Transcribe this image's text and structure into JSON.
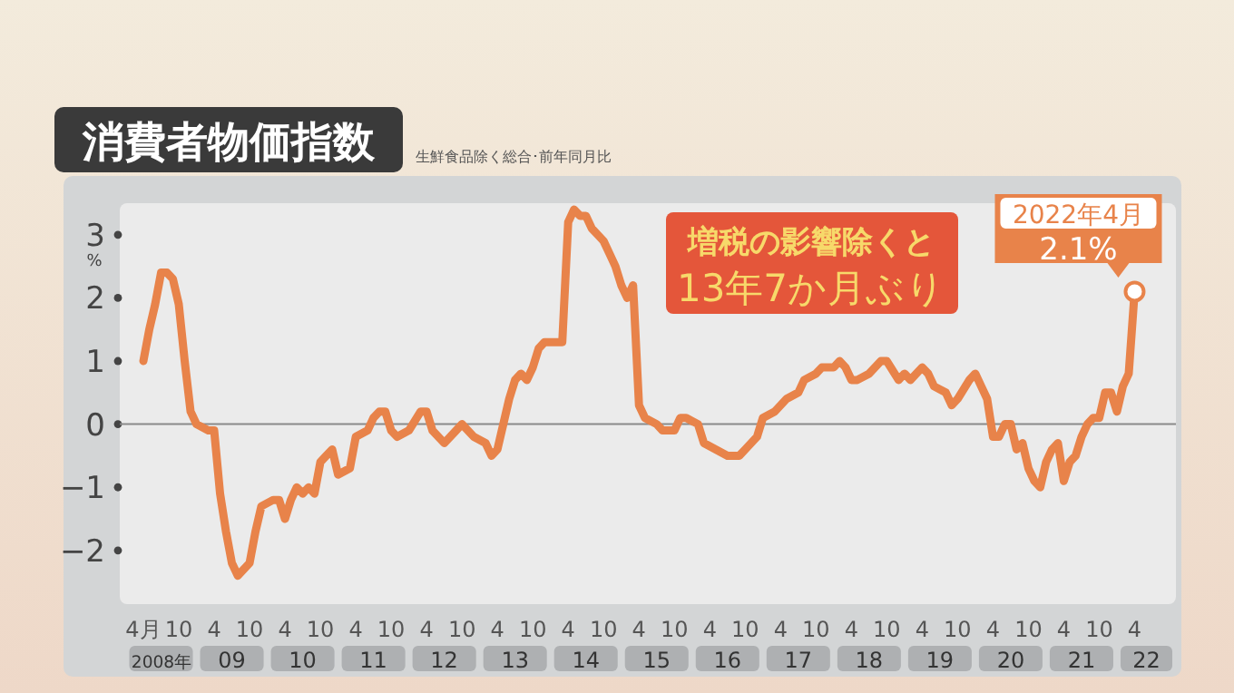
{
  "chart_data": {
    "type": "line",
    "title": "消費者物価指数",
    "subtitle": "生鮮食品除く総合･前年同月比",
    "ylabel": "%",
    "x": [
      "2008-04",
      "2008-05",
      "2008-06",
      "2008-07",
      "2008-08",
      "2008-09",
      "2008-10",
      "2008-11",
      "2008-12",
      "2009-01",
      "2009-03",
      "2009-04",
      "2009-05",
      "2009-06",
      "2009-07",
      "2009-08",
      "2009-10",
      "2009-11",
      "2009-12",
      "2010-02",
      "2010-03",
      "2010-04",
      "2010-05",
      "2010-06",
      "2010-07",
      "2010-08",
      "2010-09",
      "2010-10",
      "2010-11",
      "2010-12",
      "2011-01",
      "2011-03",
      "2011-04",
      "2011-06",
      "2011-07",
      "2011-08",
      "2011-09",
      "2011-10",
      "2011-11",
      "2012-01",
      "2012-03",
      "2012-04",
      "2012-05",
      "2012-07",
      "2012-09",
      "2012-10",
      "2012-12",
      "2013-02",
      "2013-03",
      "2013-04",
      "2013-05",
      "2013-06",
      "2013-07",
      "2013-08",
      "2013-09",
      "2013-10",
      "2013-11",
      "2013-12",
      "2014-03",
      "2014-04",
      "2014-05",
      "2014-06",
      "2014-07",
      "2014-08",
      "2014-09",
      "2014-10",
      "2014-11",
      "2014-12",
      "2015-01",
      "2015-02",
      "2015-03",
      "2015-04",
      "2015-05",
      "2015-07",
      "2015-08",
      "2015-10",
      "2015-11",
      "2015-12",
      "2016-02",
      "2016-03",
      "2016-05",
      "2016-07",
      "2016-09",
      "2016-10",
      "2016-12",
      "2017-01",
      "2017-03",
      "2017-05",
      "2017-07",
      "2017-08",
      "2017-10",
      "2017-11",
      "2018-01",
      "2018-02",
      "2018-03",
      "2018-04",
      "2018-05",
      "2018-07",
      "2018-09",
      "2018-10",
      "2018-12",
      "2019-01",
      "2019-02",
      "2019-04",
      "2019-05",
      "2019-06",
      "2019-08",
      "2019-09",
      "2019-10",
      "2019-12",
      "2020-01",
      "2020-02",
      "2020-03",
      "2020-04",
      "2020-05",
      "2020-06",
      "2020-07",
      "2020-08",
      "2020-09",
      "2020-10",
      "2020-11",
      "2020-12",
      "2021-01",
      "2021-02",
      "2021-03",
      "2021-04",
      "2021-05",
      "2021-06",
      "2021-07",
      "2021-08",
      "2021-09",
      "2021-10",
      "2021-11",
      "2021-12",
      "2022-01",
      "2022-02",
      "2022-03",
      "2022-04"
    ],
    "series": [
      {
        "color": "#e8834a",
        "values": [
          1.0,
          1.5,
          1.9,
          2.4,
          2.4,
          2.3,
          1.9,
          1.0,
          0.2,
          0.0,
          -0.1,
          -0.1,
          -1.1,
          -1.7,
          -2.2,
          -2.4,
          -2.2,
          -1.7,
          -1.3,
          -1.2,
          -1.2,
          -1.5,
          -1.2,
          -1.0,
          -1.1,
          -1.0,
          -1.1,
          -0.6,
          -0.5,
          -0.4,
          -0.8,
          -0.7,
          -0.2,
          -0.1,
          0.1,
          0.2,
          0.2,
          -0.1,
          -0.2,
          -0.1,
          0.2,
          0.2,
          -0.1,
          -0.3,
          -0.1,
          0.0,
          -0.2,
          -0.3,
          -0.5,
          -0.4,
          0.0,
          0.4,
          0.7,
          0.8,
          0.7,
          0.9,
          1.2,
          1.3,
          1.3,
          3.2,
          3.4,
          3.3,
          3.3,
          3.1,
          3.0,
          2.9,
          2.7,
          2.5,
          2.2,
          2.0,
          2.2,
          0.3,
          0.1,
          0.0,
          -0.1,
          -0.1,
          0.1,
          0.1,
          0.0,
          -0.3,
          -0.4,
          -0.5,
          -0.5,
          -0.4,
          -0.2,
          0.1,
          0.2,
          0.4,
          0.5,
          0.7,
          0.8,
          0.9,
          0.9,
          1.0,
          0.9,
          0.7,
          0.7,
          0.8,
          1.0,
          1.0,
          0.7,
          0.8,
          0.7,
          0.9,
          0.8,
          0.6,
          0.5,
          0.3,
          0.4,
          0.7,
          0.8,
          0.6,
          0.4,
          -0.2,
          -0.2,
          0.0,
          0.0,
          -0.4,
          -0.3,
          -0.7,
          -0.9,
          -1.0,
          -0.6,
          -0.4,
          -0.3,
          -0.9,
          -0.6,
          -0.5,
          -0.2,
          0.0,
          0.1,
          0.1,
          0.5,
          0.5,
          0.2,
          0.6,
          0.8,
          2.1
        ]
      }
    ],
    "xlim": [
      "2007-12",
      "2022-11"
    ],
    "ylim": [
      -2.85,
      3.5
    ],
    "yticks": [
      -2,
      -1,
      0,
      1,
      2,
      3
    ],
    "xticks": [
      {
        "value": "2008-04",
        "label": "4月"
      },
      {
        "value": "2008-10",
        "label": "10"
      },
      {
        "value": "2009-04",
        "label": "4"
      },
      {
        "value": "2009-10",
        "label": "10"
      },
      {
        "value": "2010-04",
        "label": "4"
      },
      {
        "value": "2010-10",
        "label": "10"
      },
      {
        "value": "2011-04",
        "label": "4"
      },
      {
        "value": "2011-10",
        "label": "10"
      },
      {
        "value": "2012-04",
        "label": "4"
      },
      {
        "value": "2012-10",
        "label": "10"
      },
      {
        "value": "2013-04",
        "label": "4"
      },
      {
        "value": "2013-10",
        "label": "10"
      },
      {
        "value": "2014-04",
        "label": "4"
      },
      {
        "value": "2014-10",
        "label": "10"
      },
      {
        "value": "2015-04",
        "label": "4"
      },
      {
        "value": "2015-10",
        "label": "10"
      },
      {
        "value": "2016-04",
        "label": "4"
      },
      {
        "value": "2016-10",
        "label": "10"
      },
      {
        "value": "2017-04",
        "label": "4"
      },
      {
        "value": "2017-10",
        "label": "10"
      },
      {
        "value": "2018-04",
        "label": "4"
      },
      {
        "value": "2018-10",
        "label": "10"
      },
      {
        "value": "2019-04",
        "label": "4"
      },
      {
        "value": "2019-10",
        "label": "10"
      },
      {
        "value": "2020-04",
        "label": "4"
      },
      {
        "value": "2020-10",
        "label": "10"
      },
      {
        "value": "2021-04",
        "label": "4"
      },
      {
        "value": "2021-10",
        "label": "10"
      },
      {
        "value": "2022-04",
        "label": "4"
      }
    ],
    "ref_lines": [
      {
        "axis": "y",
        "value": 0,
        "color": "#8a8a8a"
      }
    ],
    "annotations": [
      "増税の影響除くと\n13年7か月ぶり",
      "2008年",
      "09",
      "10",
      "11",
      "12",
      "13",
      "14",
      "15",
      "16",
      "17",
      "18",
      "19",
      "20",
      "21",
      "22",
      {
        "text": "2022年4月\n2.1%",
        "x": "2022-04",
        "y": 2.1
      }
    ]
  }
}
